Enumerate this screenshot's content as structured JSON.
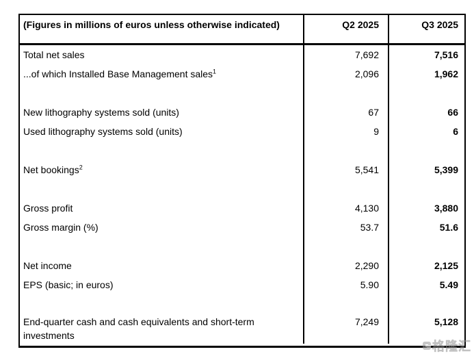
{
  "table": {
    "header": {
      "label": "(Figures in millions of euros unless otherwise indicated)",
      "col_q2": "Q2 2025",
      "col_q3": "Q3 2025"
    },
    "rows": [
      {
        "label": "Total net sales",
        "q2": "7,692",
        "q3": "7,516"
      },
      {
        "label": "...of which Installed Base Management sales",
        "sup": "1",
        "q2": "2,096",
        "q3": "1,962"
      },
      {
        "spacer": true
      },
      {
        "label": "New lithography systems sold (units)",
        "q2": "67",
        "q3": "66"
      },
      {
        "label": "Used lithography systems sold (units)",
        "q2": "9",
        "q3": "6"
      },
      {
        "spacer": true
      },
      {
        "label": "Net bookings",
        "sup": "2",
        "q2": "5,541",
        "q3": "5,399"
      },
      {
        "spacer": true
      },
      {
        "label": "Gross profit",
        "q2": "4,130",
        "q3": "3,880"
      },
      {
        "label": "Gross margin (%)",
        "q2": "53.7",
        "q3": "51.6"
      },
      {
        "spacer": true
      },
      {
        "label": "Net income",
        "q2": "2,290",
        "q3": "2,125"
      },
      {
        "label": "EPS (basic; in euros)",
        "q2": "5.90",
        "q3": "5.49"
      },
      {
        "spacer": true
      },
      {
        "label": "End-quarter cash and cash equivalents and short-term investments",
        "q2": "7,249",
        "q3": "5,128"
      }
    ]
  },
  "watermark": {
    "text": "格隆汇"
  },
  "colors": {
    "border": "#000000",
    "text": "#000000",
    "background": "#ffffff",
    "watermark": "#9a9a9a"
  }
}
